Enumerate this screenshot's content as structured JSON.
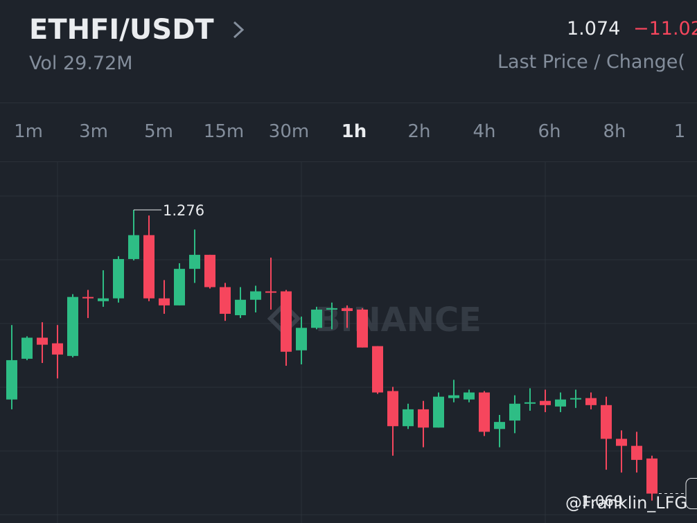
{
  "header": {
    "pair": "ETHFI/USDT",
    "volume": "Vol 29.72M",
    "last_price": "1.074",
    "change": "−11.02",
    "price_caption": "Last Price / Change("
  },
  "tabs": {
    "items": [
      "1m",
      "3m",
      "5m",
      "15m",
      "30m",
      "1h",
      "2h",
      "4h",
      "6h",
      "8h",
      "1"
    ],
    "active": "1h"
  },
  "watermark": "BINANCE",
  "credit": "@Franklin_LFG",
  "chart_data": {
    "type": "candlestick",
    "ylim": [
      1.058,
      1.311
    ],
    "up_color": "#2ebd85",
    "down_color": "#f6465d",
    "open": [
      1.141,
      1.17,
      1.185,
      1.181,
      1.172,
      1.214,
      1.211,
      1.213,
      1.241,
      1.258,
      1.213,
      1.208,
      1.234,
      1.244,
      1.221,
      1.201,
      1.212,
      1.218,
      1.218,
      1.176,
      1.192,
      1.205,
      1.206,
      1.205,
      1.179,
      1.147,
      1.122,
      1.134,
      1.121,
      1.142,
      1.141,
      1.146,
      1.12,
      1.126,
      1.138,
      1.14,
      1.136,
      1.141,
      1.142,
      1.137,
      1.113,
      1.108,
      1.099
    ],
    "high": [
      1.194,
      1.186,
      1.196,
      1.194,
      1.216,
      1.219,
      1.233,
      1.243,
      1.276,
      1.272,
      1.226,
      1.238,
      1.262,
      1.244,
      1.224,
      1.221,
      1.222,
      1.242,
      1.219,
      1.2,
      1.207,
      1.21,
      1.208,
      1.206,
      1.179,
      1.15,
      1.138,
      1.14,
      1.146,
      1.155,
      1.148,
      1.147,
      1.13,
      1.144,
      1.149,
      1.148,
      1.146,
      1.148,
      1.146,
      1.143,
      1.119,
      1.118,
      1.101
    ],
    "low": [
      1.134,
      1.169,
      1.167,
      1.156,
      1.171,
      1.199,
      1.207,
      1.21,
      1.24,
      1.211,
      1.202,
      1.208,
      1.224,
      1.22,
      1.197,
      1.199,
      1.203,
      1.205,
      1.165,
      1.166,
      1.191,
      1.191,
      1.192,
      1.178,
      1.145,
      1.101,
      1.12,
      1.107,
      1.121,
      1.139,
      1.139,
      1.115,
      1.107,
      1.117,
      1.133,
      1.132,
      1.132,
      1.135,
      1.134,
      1.091,
      1.089,
      1.089,
      1.069
    ],
    "close": [
      1.169,
      1.185,
      1.18,
      1.173,
      1.214,
      1.213,
      1.213,
      1.241,
      1.258,
      1.213,
      1.208,
      1.234,
      1.244,
      1.221,
      1.202,
      1.212,
      1.218,
      1.217,
      1.175,
      1.192,
      1.205,
      1.206,
      1.204,
      1.178,
      1.146,
      1.122,
      1.134,
      1.121,
      1.143,
      1.144,
      1.146,
      1.118,
      1.125,
      1.138,
      1.139,
      1.137,
      1.141,
      1.142,
      1.137,
      1.113,
      1.108,
      1.098,
      1.074
    ]
  }
}
